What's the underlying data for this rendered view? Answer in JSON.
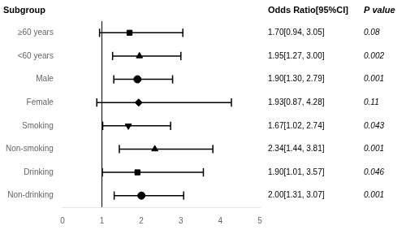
{
  "chart_data": {
    "type": "forest",
    "categories": [
      "≥60 years",
      "<60 years",
      "Male",
      "Female",
      "Smoking",
      "Non-smoking",
      "Drinking",
      "Non-drinking"
    ],
    "values": [
      1.7,
      1.95,
      1.9,
      1.93,
      1.67,
      2.34,
      1.9,
      2.0
    ],
    "ci_lower": [
      0.94,
      1.27,
      1.3,
      0.87,
      1.02,
      1.44,
      1.01,
      1.31
    ],
    "ci_upper": [
      3.05,
      3.0,
      2.79,
      4.28,
      2.74,
      3.81,
      3.57,
      3.07
    ],
    "value_labels": [
      "1.70[0.94, 3.05]",
      "1.95[1.27, 3.00]",
      "1.90[1.30, 2.79]",
      "1.93[0.87, 4.28]",
      "1.67[1.02, 2.74]",
      "2.34[1.44, 3.81]",
      "1.90[1.01, 3.57]",
      "2.00[1.31, 3.07]"
    ],
    "p_values": [
      0.08,
      0.002,
      0.001,
      0.11,
      0.043,
      0.001,
      0.046,
      0.001
    ],
    "markers": [
      "square",
      "triangle_up",
      "circle",
      "diamond",
      "triangle_down",
      "triangle_up",
      "square",
      "circle"
    ],
    "color": "#000000",
    "ref_line": 1,
    "xlim": [
      0,
      5
    ],
    "xticks": [
      0,
      1,
      2,
      3,
      4,
      5
    ],
    "grid": false,
    "subgroup_header": "Subgroup",
    "value_header": "Odds Ratio[95%CI]",
    "p_header": "P value"
  }
}
